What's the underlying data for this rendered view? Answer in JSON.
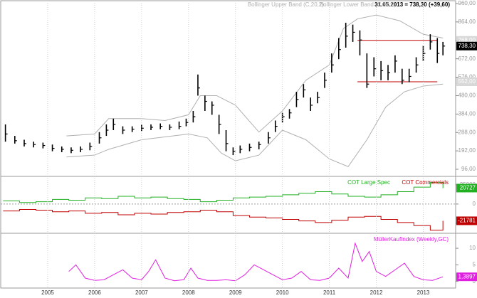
{
  "chart_data": [
    {
      "type": "ohlc",
      "header": "31.05.2013 = 738,30 (+39,60)",
      "series_labels": [
        "Bollinger Upper Band (C,20,2)",
        "Bollinger Lower Band (C,20,2)"
      ],
      "xlim": [
        2004.03,
        2013.66
      ],
      "ylim": [
        59,
        971
      ],
      "yticks": [
        {
          "value": 96,
          "label": "96,00"
        },
        {
          "value": 192,
          "label": "192,00"
        },
        {
          "value": 288,
          "label": "288,00"
        },
        {
          "value": 384,
          "label": "384,00"
        },
        {
          "value": 480,
          "label": "480,00"
        },
        {
          "value": 576,
          "label": "576,00"
        },
        {
          "value": 672,
          "label": "672,00"
        },
        {
          "value": 768,
          "label": "768,00"
        },
        {
          "value": 864,
          "label": "864,00"
        },
        {
          "value": 960,
          "label": "960,00"
        }
      ],
      "color": "#000000",
      "x": [
        2004.1,
        2004.3,
        2004.5,
        2004.7,
        2004.9,
        2005.1,
        2005.3,
        2005.5,
        2005.7,
        2005.9,
        2006.1,
        2006.25,
        2006.4,
        2006.6,
        2006.8,
        2007.0,
        2007.2,
        2007.4,
        2007.6,
        2007.8,
        2007.95,
        2008.1,
        2008.2,
        2008.35,
        2008.5,
        2008.65,
        2008.8,
        2008.95,
        2009.1,
        2009.3,
        2009.5,
        2009.7,
        2009.85,
        2010.0,
        2010.15,
        2010.3,
        2010.45,
        2010.6,
        2010.75,
        2010.9,
        2011.05,
        2011.2,
        2011.35,
        2011.5,
        2011.65,
        2011.8,
        2011.95,
        2012.1,
        2012.25,
        2012.4,
        2012.55,
        2012.7,
        2012.85,
        2013.0,
        2013.15,
        2013.3,
        2013.42
      ],
      "high": [
        330,
        270,
        250,
        240,
        235,
        225,
        215,
        210,
        215,
        235,
        290,
        330,
        360,
        320,
        320,
        330,
        330,
        335,
        330,
        345,
        360,
        400,
        590,
        480,
        450,
        380,
        300,
        210,
        220,
        230,
        240,
        290,
        350,
        390,
        410,
        500,
        540,
        470,
        500,
        600,
        700,
        780,
        860,
        850,
        820,
        700,
        680,
        660,
        640,
        690,
        620,
        620,
        680,
        740,
        800,
        780,
        760
      ],
      "low": [
        240,
        230,
        215,
        210,
        205,
        190,
        185,
        180,
        185,
        195,
        230,
        270,
        300,
        280,
        290,
        295,
        300,
        305,
        300,
        305,
        320,
        340,
        480,
        400,
        380,
        280,
        190,
        170,
        180,
        190,
        200,
        230,
        290,
        340,
        360,
        420,
        470,
        400,
        440,
        520,
        600,
        670,
        730,
        760,
        690,
        520,
        580,
        560,
        560,
        600,
        540,
        550,
        600,
        660,
        720,
        650,
        690
      ],
      "close": [
        280,
        245,
        230,
        225,
        220,
        205,
        200,
        195,
        200,
        215,
        260,
        300,
        330,
        300,
        305,
        310,
        315,
        320,
        315,
        320,
        340,
        370,
        520,
        450,
        430,
        330,
        230,
        190,
        200,
        210,
        225,
        260,
        320,
        370,
        390,
        460,
        510,
        430,
        470,
        560,
        640,
        720,
        790,
        810,
        770,
        540,
        620,
        610,
        600,
        660,
        560,
        580,
        640,
        700,
        760,
        700,
        738.3
      ],
      "last_tag": {
        "value": 738.3,
        "label": "738,30"
      },
      "bands": [
        {
          "color": "#b0b0b0",
          "x": [
            2005.4,
            2006.0,
            2006.3,
            2007.0,
            2007.5,
            2008.0,
            2008.25,
            2008.6,
            2009.0,
            2009.5,
            2010.0,
            2010.5,
            2011.0,
            2011.3,
            2011.6,
            2012.0,
            2012.5,
            2013.0,
            2013.42
          ],
          "values": [
            270,
            280,
            360,
            360,
            350,
            380,
            480,
            480,
            430,
            290,
            400,
            560,
            640,
            830,
            880,
            900,
            870,
            800,
            780
          ]
        },
        {
          "color": "#b0b0b0",
          "x": [
            2005.4,
            2006.0,
            2006.3,
            2007.0,
            2008.0,
            2008.4,
            2008.7,
            2009.0,
            2009.5,
            2010.0,
            2010.5,
            2011.0,
            2011.4,
            2011.8,
            2012.2,
            2012.6,
            2013.0,
            2013.42
          ],
          "values": [
            160,
            170,
            200,
            250,
            280,
            260,
            180,
            140,
            170,
            300,
            250,
            150,
            110,
            250,
            420,
            500,
            530,
            540
          ]
        }
      ],
      "levels": [
        {
          "value": 768,
          "label": "768,00"
        },
        {
          "value": 552,
          "label": "552,00"
        }
      ],
      "level_x": [
        2011.6,
        2013.3
      ],
      "level_color": "#c00000"
    },
    {
      "type": "step",
      "xlim": [
        2004.03,
        2013.66
      ],
      "ylim": [
        -38000,
        35000
      ],
      "yticks": [
        -25000,
        0,
        25000
      ],
      "series": [
        {
          "name": "COT Large Spec",
          "color": "#22b022",
          "x": [
            2004.05,
            2004.4,
            2004.75,
            2005.1,
            2005.45,
            2005.8,
            2006.15,
            2006.5,
            2006.85,
            2007.2,
            2007.55,
            2007.9,
            2008.25,
            2008.6,
            2008.95,
            2009.3,
            2009.65,
            2010.0,
            2010.35,
            2010.7,
            2011.05,
            2011.4,
            2011.75,
            2012.1,
            2012.45,
            2012.8,
            2013.15,
            2013.42
          ],
          "values": [
            4000,
            2000,
            3000,
            6000,
            5000,
            8000,
            7000,
            10000,
            8000,
            9000,
            7000,
            6000,
            3000,
            5000,
            8000,
            9000,
            10000,
            12000,
            14000,
            16000,
            13000,
            10000,
            9000,
            12000,
            16000,
            22000,
            28000,
            20727
          ],
          "tag": 20727
        },
        {
          "name": "COT Commercials",
          "color": "#c00000",
          "x": [
            2004.05,
            2004.4,
            2004.75,
            2005.1,
            2005.45,
            2005.8,
            2006.15,
            2006.5,
            2006.85,
            2007.2,
            2007.55,
            2007.9,
            2008.25,
            2008.6,
            2008.95,
            2009.3,
            2009.65,
            2010.0,
            2010.35,
            2010.7,
            2011.05,
            2011.4,
            2011.75,
            2012.1,
            2012.45,
            2012.8,
            2013.15,
            2013.42
          ],
          "values": [
            -9000,
            -7000,
            -8000,
            -10000,
            -9000,
            -12000,
            -11000,
            -14000,
            -12000,
            -13000,
            -11000,
            -10000,
            -8000,
            -10000,
            -15000,
            -17000,
            -18000,
            -20000,
            -22000,
            -24000,
            -21000,
            -17000,
            -16000,
            -20000,
            -24000,
            -28000,
            -34000,
            -21781
          ],
          "tag": -21781
        }
      ]
    },
    {
      "type": "line",
      "xlim": [
        2004.03,
        2013.66
      ],
      "ylim": [
        -2,
        14.3
      ],
      "yticks": [
        0,
        5,
        10
      ],
      "xticks": [
        2005,
        2006,
        2007,
        2008,
        2009,
        2010,
        2011,
        2012,
        2013
      ],
      "series": [
        {
          "name": "MüllerKaufIndex (Weekly,GC)",
          "color": "#e020e0",
          "x": [
            2005.45,
            2005.6,
            2005.8,
            2006.0,
            2006.2,
            2006.4,
            2006.6,
            2006.8,
            2007.0,
            2007.15,
            2007.3,
            2007.5,
            2007.7,
            2007.9,
            2008.05,
            2008.2,
            2008.4,
            2008.6,
            2008.8,
            2009.0,
            2009.2,
            2009.4,
            2009.6,
            2009.8,
            2010.0,
            2010.2,
            2010.4,
            2010.6,
            2010.8,
            2011.0,
            2011.2,
            2011.4,
            2011.55,
            2011.7,
            2011.85,
            2012.0,
            2012.2,
            2012.4,
            2012.6,
            2012.8,
            2013.0,
            2013.2,
            2013.42
          ],
          "values": [
            3,
            5,
            1,
            0.3,
            0.5,
            2,
            3.5,
            1,
            0.5,
            3,
            6.5,
            1,
            0.2,
            0.5,
            4,
            1,
            0.3,
            0.3,
            0.5,
            0.2,
            2,
            5,
            3.5,
            2,
            0.5,
            1,
            3,
            0.5,
            0.3,
            1,
            4,
            1,
            11.5,
            6,
            9,
            3,
            1.5,
            3.5,
            5.5,
            1.5,
            0.5,
            0.3,
            1.3897
          ],
          "tag": {
            "value": 1.3897,
            "label": "1,3897"
          }
        }
      ]
    }
  ]
}
